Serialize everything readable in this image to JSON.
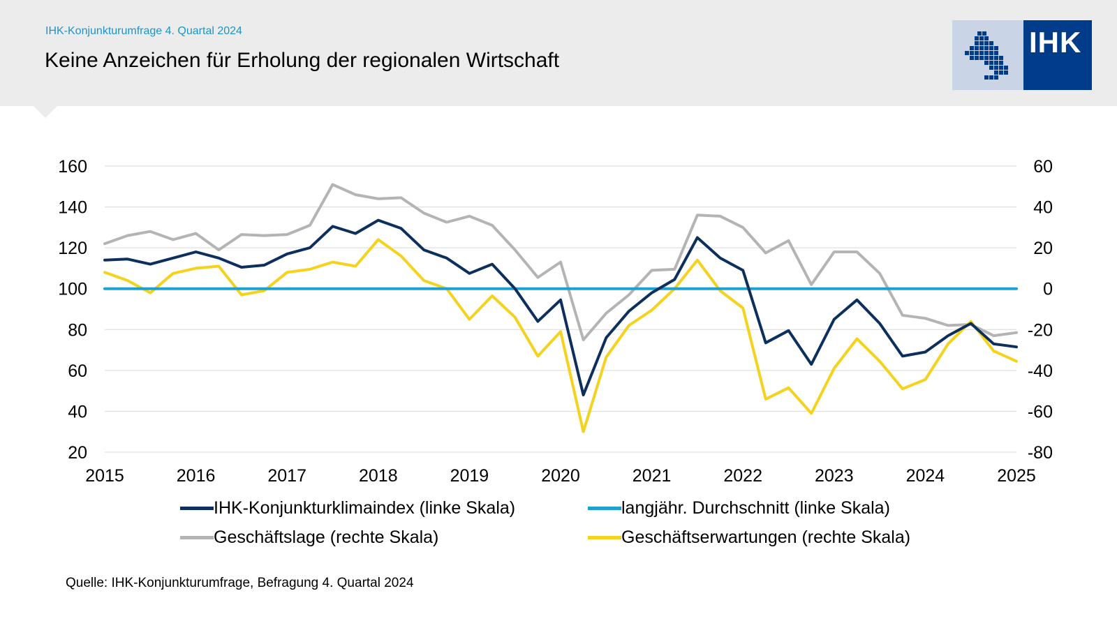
{
  "header": {
    "subtitle": "IHK-Konjunkturumfrage 4. Quartal 2024",
    "title": "Keine Anzeichen für Erholung der regionalen Wirtschaft"
  },
  "logo": {
    "text": "IHK",
    "colors": {
      "dark": "#003c8a",
      "light": "#c9d5e6"
    }
  },
  "chart_data": {
    "type": "line",
    "title": "Keine Anzeichen für Erholung der regionalen Wirtschaft",
    "x_ticks": [
      "2015",
      "2016",
      "2017",
      "2018",
      "2019",
      "2020",
      "2021",
      "2022",
      "2023",
      "2024",
      "2025"
    ],
    "xlim": [
      2015,
      2025
    ],
    "y_left_ticks": [
      "160",
      "140",
      "120",
      "100",
      "80",
      "60",
      "40",
      "20"
    ],
    "y_left_range": [
      20,
      160
    ],
    "y_right_ticks": [
      "60",
      "40",
      "20",
      "0",
      "-20",
      "-40",
      "-60",
      "-80"
    ],
    "y_right_range": [
      -80,
      60
    ],
    "grid": true,
    "x": [
      2015.0,
      2015.25,
      2015.5,
      2015.75,
      2016.0,
      2016.25,
      2016.5,
      2016.75,
      2017.0,
      2017.25,
      2017.5,
      2017.75,
      2018.0,
      2018.25,
      2018.5,
      2018.75,
      2019.0,
      2019.25,
      2019.5,
      2019.75,
      2020.0,
      2020.25,
      2020.5,
      2020.75,
      2021.0,
      2021.25,
      2021.5,
      2021.75,
      2022.0,
      2022.25,
      2022.5,
      2022.75,
      2023.0,
      2023.25,
      2023.5,
      2023.75,
      2024.0,
      2024.25,
      2024.5,
      2024.75,
      2025.0
    ],
    "series": [
      {
        "name": "IHK-Konjunkturklimaindex (linke Skala)",
        "axis": "left",
        "color": "#0d2f5e",
        "values": [
          114,
          114.5,
          112,
          115,
          118,
          115,
          110.5,
          111.5,
          117,
          120,
          130.5,
          127,
          133.5,
          129.5,
          119,
          115,
          107.5,
          112,
          100,
          84,
          94.5,
          48,
          76,
          89,
          98,
          104.5,
          125,
          115,
          109,
          73.5,
          79.5,
          63,
          85,
          94.5,
          83,
          67,
          69,
          77,
          83,
          73,
          71.5
        ]
      },
      {
        "name": "langjähr. Durchschnitt (linke Skala)",
        "axis": "left",
        "color": "#1ea0d0",
        "values": [
          100,
          100,
          100,
          100,
          100,
          100,
          100,
          100,
          100,
          100,
          100,
          100,
          100,
          100,
          100,
          100,
          100,
          100,
          100,
          100,
          100,
          100,
          100,
          100,
          100,
          100,
          100,
          100,
          100,
          100,
          100,
          100,
          100,
          100,
          100,
          100,
          100,
          100,
          100,
          100,
          100
        ]
      },
      {
        "name": "Geschäftslage (rechte Skala)",
        "axis": "right",
        "color": "#b4b4b4",
        "values": [
          22,
          26,
          28,
          24,
          27,
          19,
          26.5,
          26,
          26.5,
          31,
          51,
          46,
          44,
          44.5,
          37,
          32.5,
          35.5,
          31,
          19,
          5.5,
          13,
          -25,
          -12,
          -3,
          9,
          9.5,
          36,
          35.5,
          30,
          17.5,
          23.5,
          2,
          18,
          18,
          7.5,
          -13,
          -14.5,
          -18,
          -17.5,
          -23,
          -21.5
        ]
      },
      {
        "name": "Geschäftserwartungen (rechte Skala)",
        "axis": "right",
        "color": "#f5d21e",
        "values": [
          8,
          4,
          -2,
          7.5,
          10,
          11,
          -3,
          -1,
          8,
          9.5,
          13,
          11,
          24,
          16,
          4,
          0,
          -15,
          -3.5,
          -14,
          -33,
          -21,
          -70,
          -33.5,
          -18,
          -10.5,
          0,
          14,
          -1,
          -9.5,
          -54,
          -48.5,
          -61,
          -39,
          -24.5,
          -35.5,
          -49,
          -44.5,
          -27,
          -16,
          -30.5,
          -35.5
        ]
      }
    ]
  },
  "legend": {
    "items": [
      {
        "label": "IHK-Konjunkturklimaindex (linke Skala)",
        "color": "#0d2f5e"
      },
      {
        "label": "langjähr. Durchschnitt (linke Skala)",
        "color": "#1ea0d0"
      },
      {
        "label": "Geschäftslage (rechte Skala)",
        "color": "#b4b4b4"
      },
      {
        "label": "Geschäftserwartungen (rechte Skala)",
        "color": "#f5d21e"
      }
    ]
  },
  "source": "Quelle: IHK-Konjunkturumfrage, Befragung 4. Quartal 2024"
}
